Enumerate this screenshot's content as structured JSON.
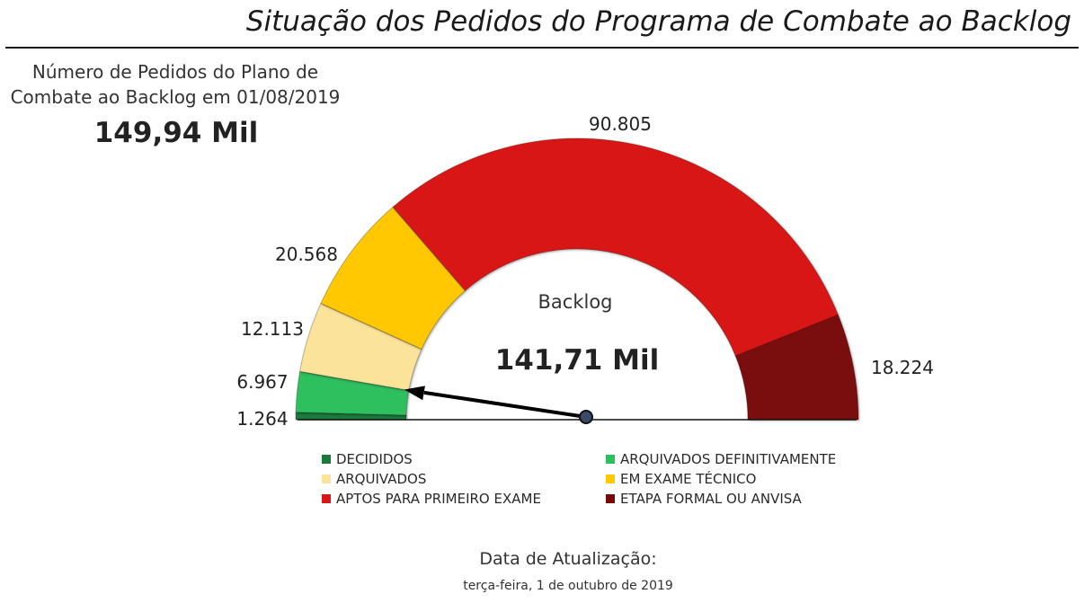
{
  "header": {
    "title": "Situação dos Pedidos do Programa de Combate ao Backlog"
  },
  "plan": {
    "label_line1": "Número de Pedidos do Plano de",
    "label_line2": "Combate ao Backlog em 01/08/2019",
    "total": "149,94 Mil"
  },
  "chart_data": {
    "type": "gauge",
    "center_label": "Backlog",
    "center_value": "141,71 Mil",
    "segments": [
      {
        "name": "DECIDIDOS",
        "value": 1264,
        "label": "1.264",
        "color": "#1a7a3e"
      },
      {
        "name": "ARQUIVADOS DEFINITIVAMENTE",
        "value": 6967,
        "label": "6.967",
        "color": "#2dbf5e"
      },
      {
        "name": "ARQUIVADOS",
        "value": 12113,
        "label": "12.113",
        "color": "#fbe39a"
      },
      {
        "name": "EM EXAME TÉCNICO",
        "value": 20568,
        "label": "20.568",
        "color": "#ffc800"
      },
      {
        "name": "APTOS PARA PRIMEIRO EXAME",
        "value": 90805,
        "label": "90.805",
        "color": "#d81818"
      },
      {
        "name": "ETAPA FORMAL OU ANVISA",
        "value": 18224,
        "label": "18.224",
        "color": "#7a0a0a"
      }
    ],
    "needle_value": 8231,
    "legend": [
      {
        "name": "DECIDIDOS",
        "color": "#1a7a3e"
      },
      {
        "name": "ARQUIVADOS DEFINITIVAMENTE",
        "color": "#2dbf5e"
      },
      {
        "name": "ARQUIVADOS",
        "color": "#fbe39a"
      },
      {
        "name": "EM EXAME TÉCNICO",
        "color": "#ffc800"
      },
      {
        "name": "APTOS PARA PRIMEIRO EXAME",
        "color": "#d81818"
      },
      {
        "name": "ETAPA FORMAL OU ANVISA",
        "color": "#7a0a0a"
      }
    ]
  },
  "footer": {
    "update_label": "Data de Atualização:",
    "update_date": "terça-feira, 1 de outubro de 2019"
  }
}
